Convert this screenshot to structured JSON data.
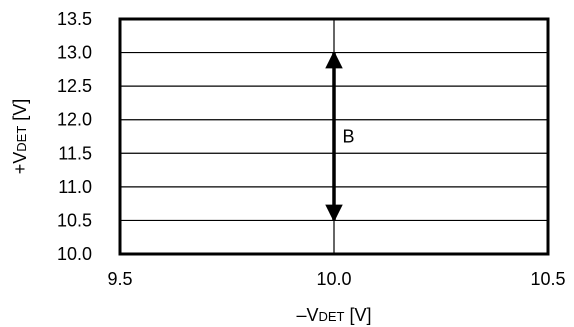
{
  "chart_data": {
    "type": "line",
    "title": "",
    "xlabel": {
      "prefix": "–V",
      "sub": "DET",
      "suffix": " [V]"
    },
    "ylabel": {
      "prefix": "+V",
      "sub": "DET",
      "suffix": " [V]"
    },
    "xlim": [
      9.5,
      10.5
    ],
    "ylim": [
      10.0,
      13.5
    ],
    "xticks": [
      "9.5",
      "10.0",
      "10.5"
    ],
    "xtick_values": [
      9.5,
      10.0,
      10.5
    ],
    "yticks": [
      "13.5",
      "13.0",
      "12.5",
      "12.0",
      "11.5",
      "11.0",
      "10.5",
      "10.0"
    ],
    "ytick_values": [
      13.5,
      13.0,
      12.5,
      12.0,
      11.5,
      11.0,
      10.5,
      10.0
    ],
    "grid": true,
    "series": [
      {
        "label": "B",
        "x": [
          10.0,
          10.0
        ],
        "y": [
          10.5,
          13.0
        ],
        "style": "double-arrow"
      }
    ],
    "annotation": {
      "text": "B",
      "x": 10.02,
      "y": 11.75
    }
  }
}
